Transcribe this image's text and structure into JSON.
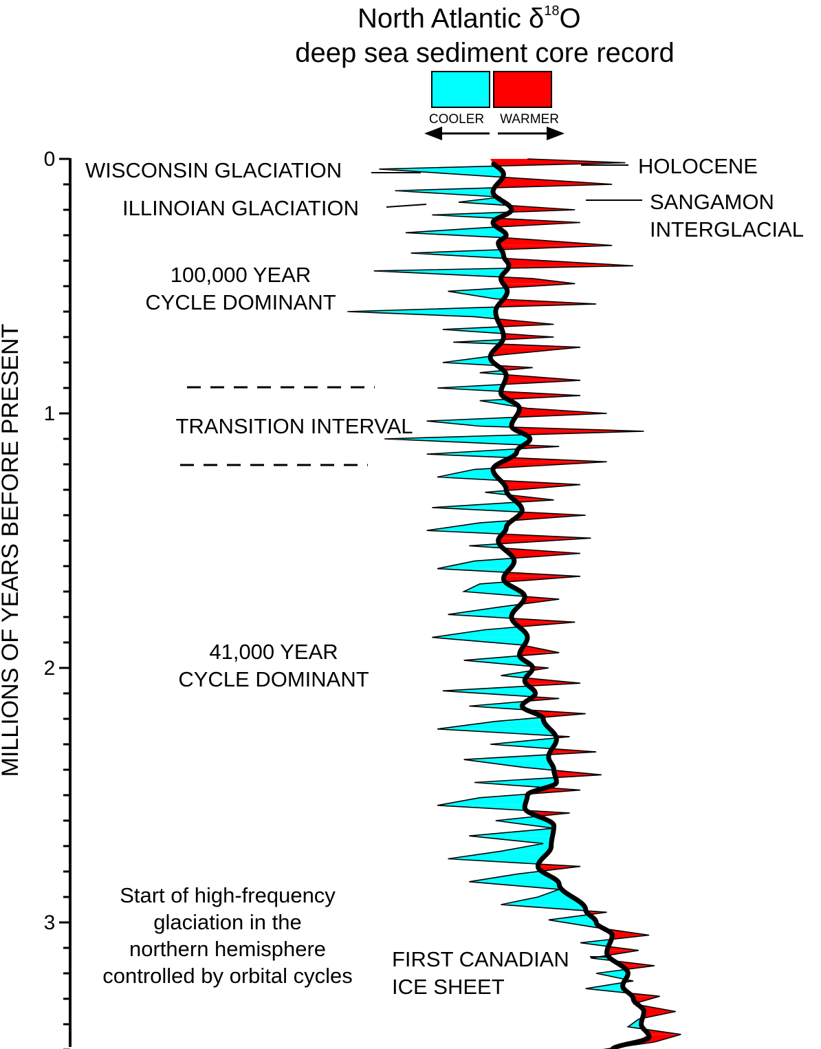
{
  "chart_data": {
    "type": "area",
    "title": "North Atlantic δ18O",
    "title_symbol": "δ",
    "title_superscript": "18",
    "title_suffix": "O",
    "subtitle": "deep sea sediment core record",
    "ylabel": "MILLIONS OF YEARS BEFORE PRESENT",
    "ylim": [
      0,
      3.5
    ],
    "y_ticks": [
      "0",
      "1",
      "2",
      "3"
    ],
    "y_tick_values": [
      0,
      1,
      2,
      3
    ],
    "legend": {
      "position": "top",
      "cooler_label": "COOLER",
      "warmer_label": "WARMER",
      "cooler_color": "#00ffff",
      "warmer_color": "#ff0000"
    },
    "smooth_color": "#000000",
    "annotations": {
      "wisconsin": "WISCONSIN GLACIATION",
      "illinoian": "ILLINOIAN GLACIATION",
      "holocene": "HOLOCENE",
      "sangamon_1": "SANGAMON",
      "sangamon_2": "INTERGLACIAL",
      "cycle100_1": "100,000 YEAR",
      "cycle100_2": "CYCLE DOMINANT",
      "transition": "TRANSITION INTERVAL",
      "cycle41_1": "41,000 YEAR",
      "cycle41_2": "CYCLE DOMINANT",
      "start_1": "Start of high-frequency",
      "start_2": "glaciation in the",
      "start_3": "northern hemisphere",
      "start_4": "controlled by orbital cycles",
      "canadian_1": "FIRST CANADIAN",
      "canadian_2": "ICE SHEET"
    },
    "smooth_series": {
      "name": "",
      "ages_ma": [
        0.0,
        0.06,
        0.13,
        0.2,
        0.25,
        0.3,
        0.33,
        0.38,
        0.42,
        0.47,
        0.52,
        0.6,
        0.7,
        0.78,
        0.85,
        0.92,
        0.98,
        1.05,
        1.1,
        1.15,
        1.22,
        1.3,
        1.38,
        1.45,
        1.5,
        1.58,
        1.65,
        1.72,
        1.8,
        1.88,
        1.95,
        2.0,
        2.05,
        2.1,
        2.15,
        2.2,
        2.28,
        2.35,
        2.4,
        2.45,
        2.5,
        2.55,
        2.62,
        2.7,
        2.78,
        2.85,
        2.95,
        3.0,
        3.05,
        3.12,
        3.2,
        3.25,
        3.3,
        3.35,
        3.4,
        3.45,
        3.5
      ],
      "values": [
        0.3,
        0.55,
        0.35,
        0.7,
        0.35,
        0.6,
        0.45,
        0.55,
        0.65,
        0.5,
        0.62,
        0.4,
        0.55,
        0.3,
        0.6,
        0.5,
        0.85,
        0.7,
        1.05,
        0.8,
        0.35,
        0.6,
        0.9,
        0.6,
        0.45,
        0.75,
        0.55,
        0.95,
        0.7,
        1.0,
        0.85,
        1.1,
        0.95,
        1.15,
        0.9,
        1.3,
        1.55,
        1.4,
        1.5,
        1.55,
        1.0,
        0.95,
        1.5,
        1.45,
        1.2,
        1.6,
        2.1,
        2.3,
        2.6,
        2.5,
        2.9,
        2.8,
        3.0,
        3.2,
        3.15,
        3.3,
        2.6
      ]
    },
    "raw_series": {
      "name": "",
      "ages_ma": [
        0.0,
        0.015,
        0.04,
        0.07,
        0.1,
        0.125,
        0.15,
        0.17,
        0.2,
        0.22,
        0.25,
        0.27,
        0.29,
        0.31,
        0.34,
        0.37,
        0.39,
        0.42,
        0.44,
        0.47,
        0.49,
        0.52,
        0.55,
        0.57,
        0.6,
        0.62,
        0.65,
        0.67,
        0.7,
        0.72,
        0.74,
        0.77,
        0.8,
        0.82,
        0.84,
        0.87,
        0.9,
        0.93,
        0.95,
        0.98,
        1.0,
        1.03,
        1.05,
        1.07,
        1.1,
        1.13,
        1.16,
        1.19,
        1.22,
        1.25,
        1.28,
        1.31,
        1.34,
        1.37,
        1.4,
        1.43,
        1.46,
        1.49,
        1.52,
        1.55,
        1.58,
        1.61,
        1.64,
        1.67,
        1.7,
        1.73,
        1.76,
        1.79,
        1.82,
        1.85,
        1.88,
        1.91,
        1.94,
        1.97,
        2.0,
        2.03,
        2.06,
        2.09,
        2.12,
        2.15,
        2.18,
        2.21,
        2.24,
        2.27,
        2.3,
        2.33,
        2.36,
        2.39,
        2.42,
        2.45,
        2.48,
        2.51,
        2.54,
        2.57,
        2.6,
        2.63,
        2.66,
        2.69,
        2.72,
        2.75,
        2.78,
        2.81,
        2.84,
        2.87,
        2.9,
        2.93,
        2.96,
        2.99,
        3.02,
        3.05,
        3.08,
        3.11,
        3.14,
        3.17,
        3.2,
        3.23,
        3.26,
        3.29,
        3.32,
        3.35,
        3.38,
        3.41,
        3.44,
        3.47,
        3.5
      ],
      "values": [
        1.0,
        2.85,
        -1.8,
        0.4,
        2.6,
        -1.5,
        0.5,
        -0.3,
        1.9,
        -0.8,
        2.0,
        0.2,
        -1.3,
        0.6,
        2.6,
        -1.2,
        0.5,
        3.0,
        -1.9,
        1.1,
        1.9,
        -0.5,
        0.4,
        2.3,
        -2.4,
        0.0,
        1.5,
        -0.6,
        1.5,
        -0.4,
        2.0,
        0.5,
        -0.6,
        1.1,
        0.1,
        2.0,
        -0.7,
        2.0,
        0.1,
        1.0,
        2.5,
        -0.9,
        0.1,
        3.2,
        -1.7,
        1.6,
        -0.9,
        2.5,
        0.0,
        -0.7,
        2.0,
        0.2,
        1.5,
        -0.8,
        2.1,
        0.1,
        -0.9,
        2.2,
        -0.1,
        2.0,
        0.0,
        -0.7,
        2.0,
        0.1,
        -0.2,
        1.6,
        0.5,
        -0.5,
        1.9,
        0.2,
        -0.8,
        0.9,
        1.6,
        -0.2,
        1.4,
        0.5,
        2.0,
        -0.6,
        1.6,
        -0.1,
        2.1,
        0.4,
        -0.7,
        1.8,
        0.3,
        2.3,
        -0.2,
        0.9,
        2.4,
        0.0,
        2.0,
        0.1,
        -0.7,
        1.8,
        0.4,
        1.5,
        -0.1,
        1.3,
        0.5,
        -0.5,
        2.0,
        0.8,
        -0.1,
        1.6,
        1.2,
        0.5,
        2.5,
        1.4,
        2.3,
        3.3,
        2.0,
        3.1,
        2.2,
        3.4,
        2.3,
        3.0,
        2.1,
        3.5,
        3.0,
        3.8,
        3.1,
        2.9,
        3.9,
        3.4,
        2.4
      ]
    }
  }
}
